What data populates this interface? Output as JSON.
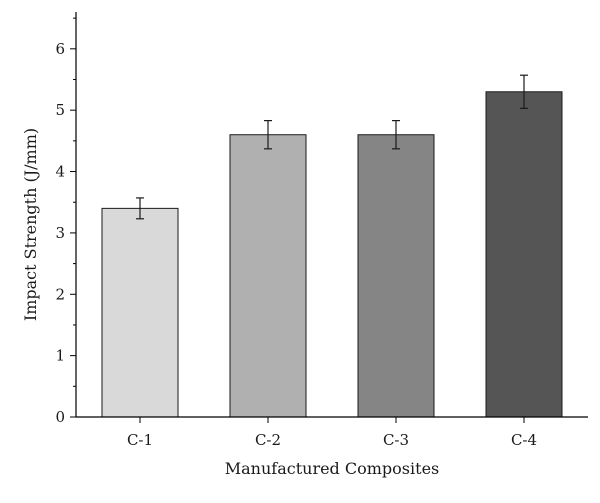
{
  "chart_data": {
    "type": "bar",
    "title": "",
    "xlabel": "Manufactured Composites",
    "ylabel": "Impact Strength (J/mm)",
    "categories": [
      "C-1",
      "C-2",
      "C-3",
      "C-4"
    ],
    "values": [
      3.4,
      4.6,
      4.6,
      5.3
    ],
    "error": [
      0.17,
      0.23,
      0.23,
      0.27
    ],
    "bar_colors": [
      "#d9d9d9",
      "#b0b0b0",
      "#858585",
      "#555555"
    ],
    "ylim": [
      0,
      6.6
    ],
    "yticks": [
      0,
      1,
      2,
      3,
      4,
      5,
      6
    ],
    "grid": false,
    "legend": "none"
  }
}
